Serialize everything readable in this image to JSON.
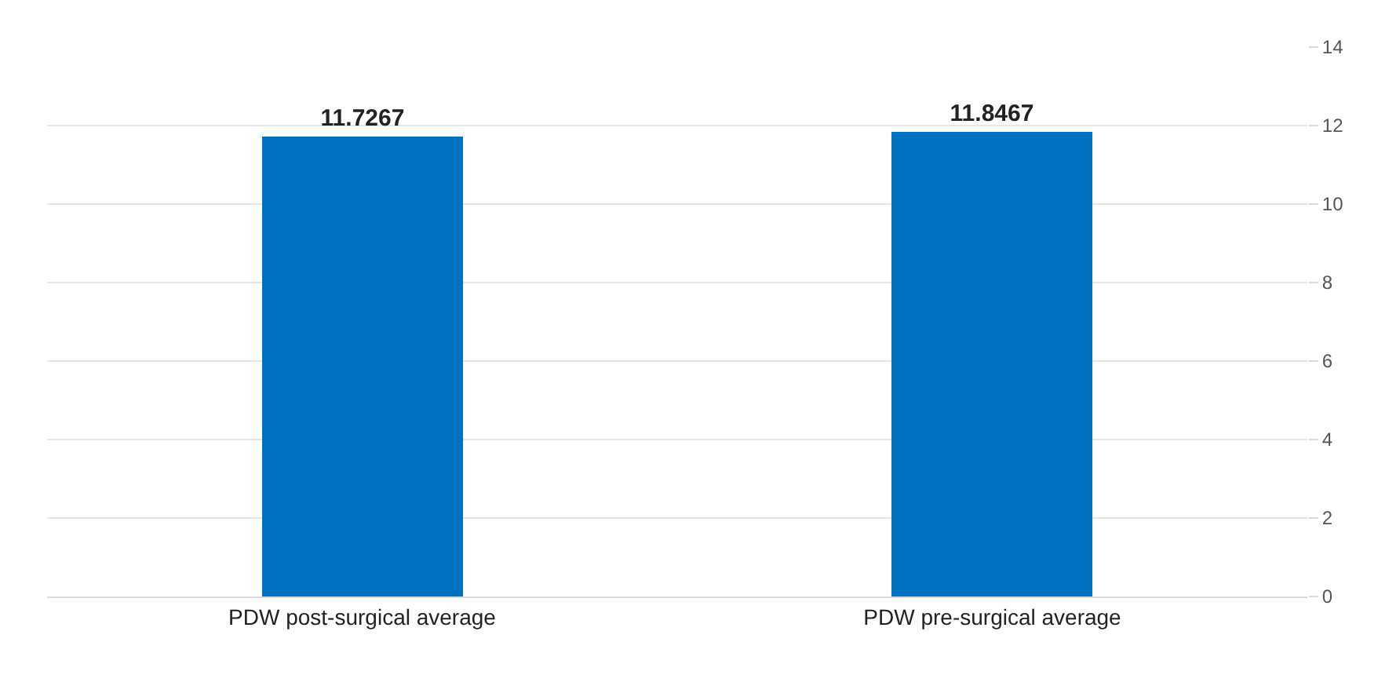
{
  "chart_data": {
    "type": "bar",
    "categories": [
      "PDW post-surgical average",
      "PDW pre-surgical average"
    ],
    "values": [
      11.7267,
      11.8467
    ],
    "color": "#0070c0",
    "ylim": [
      0,
      14
    ],
    "yticks": [
      0,
      2,
      4,
      6,
      8,
      10,
      12,
      14
    ],
    "grid": "y",
    "data_labels": true
  }
}
